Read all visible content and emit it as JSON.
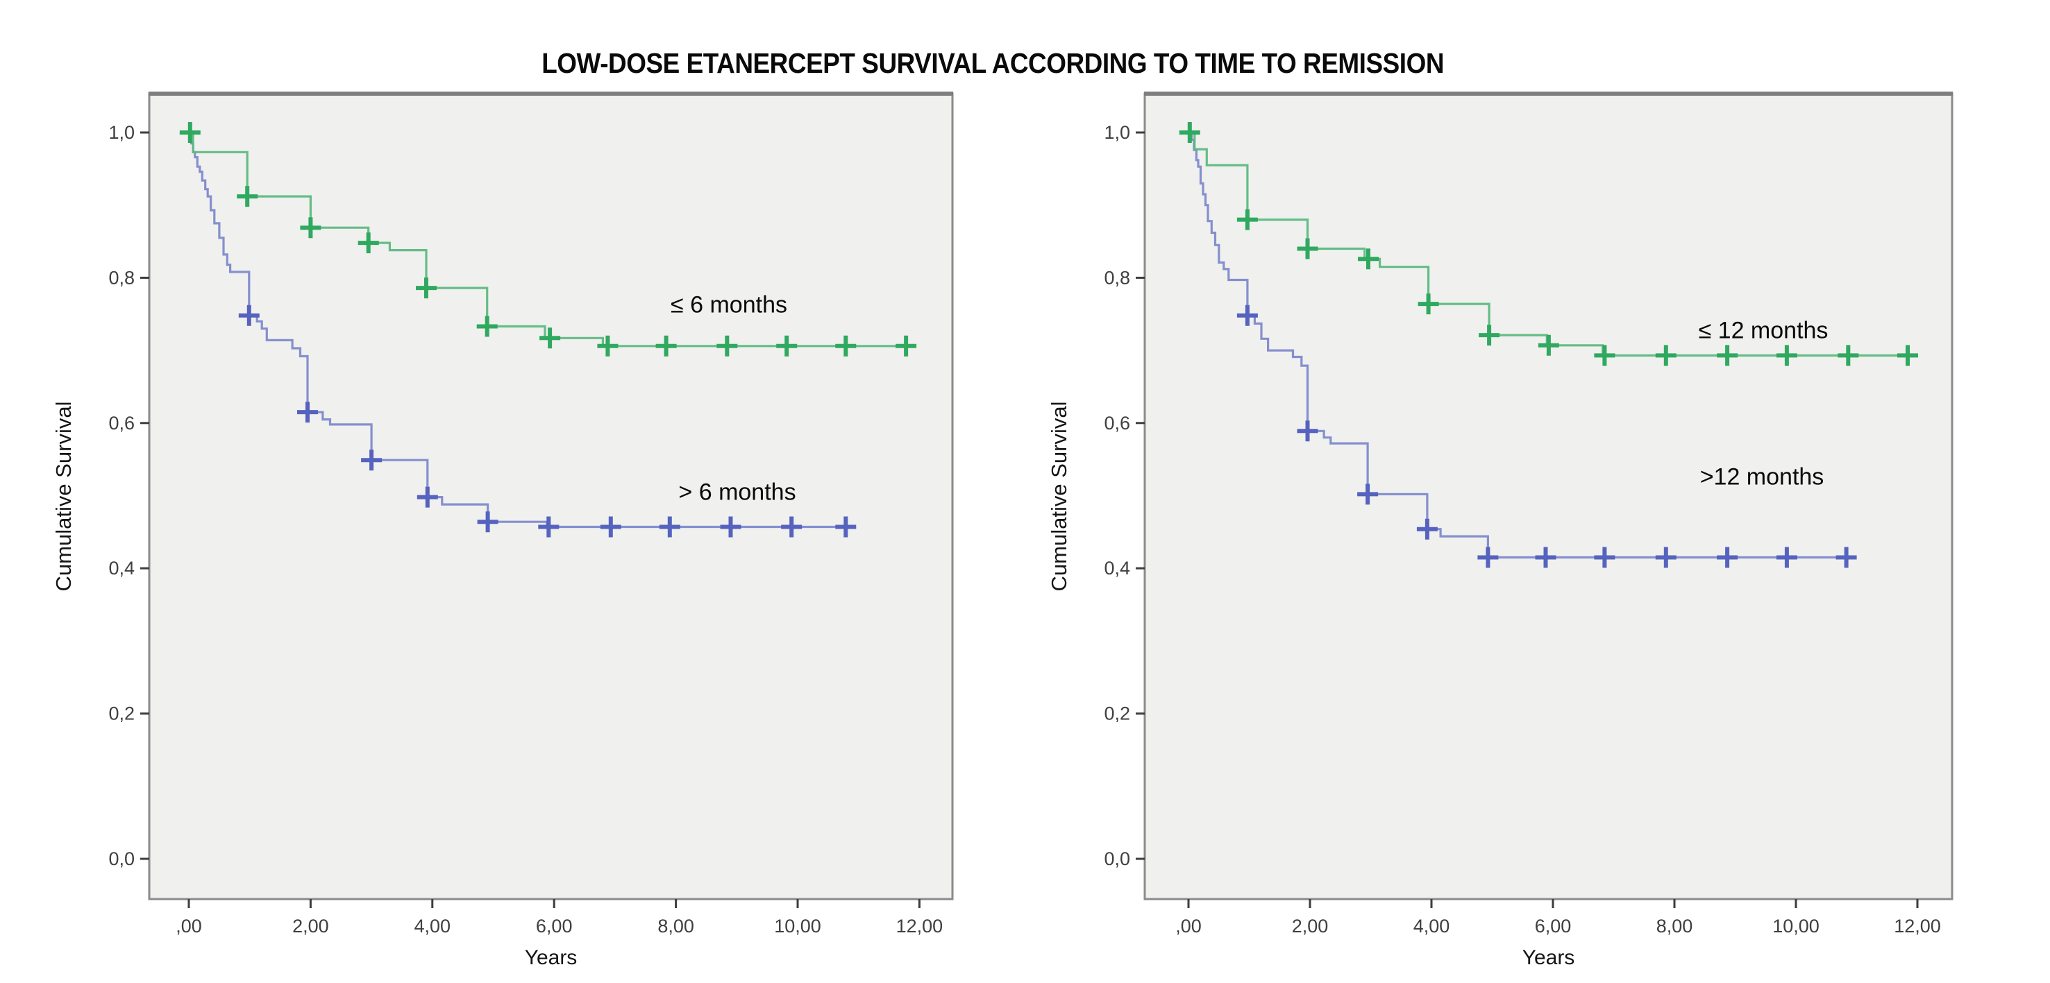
{
  "title": "LOW-DOSE ETANERCEPT SURVIVAL ACCORDING TO TIME TO REMISSION",
  "colors": {
    "background": "#ffffff",
    "plot_background": "#f0f0ee",
    "frame_border": "#8b8b8b",
    "tick_text": "#3f3f3f",
    "label_text": "#0a0a0a",
    "green_line": "#5cb981",
    "green_censor": "#2fa95f",
    "blue_line": "#7e89cc",
    "blue_censor": "#5563bf"
  },
  "chart_data": [
    {
      "type": "line",
      "subtype": "kaplan-meier-step",
      "title": "",
      "xlabel": "Years",
      "ylabel": "Cumulative Survival",
      "xlim": [
        -0.65,
        12.6
      ],
      "ylim": [
        -0.06,
        1.05
      ],
      "grid": false,
      "legend_position": "inline-annotations",
      "x_ticks": [
        0,
        2,
        4,
        6,
        8,
        10,
        12
      ],
      "x_tick_labels": [
        ",00",
        "2,00",
        "4,00",
        "6,00",
        "8,00",
        "10,00",
        "12,00"
      ],
      "y_ticks": [
        1.0,
        0.8,
        0.6,
        0.4,
        0.2,
        0.0
      ],
      "y_tick_labels": [
        "1,0",
        "0,8",
        "0,6",
        "0,4",
        "0,2",
        "0,0"
      ],
      "series": [
        {
          "name": "≤ 6 months",
          "color_key": "green_line",
          "censor_color_key": "green_censor",
          "steps": [
            [
              0,
              1.0
            ],
            [
              0.07,
              0.973
            ],
            [
              0.96,
              0.973
            ],
            [
              0.96,
              0.912
            ],
            [
              2.0,
              0.912
            ],
            [
              2.0,
              0.869
            ],
            [
              2.95,
              0.869
            ],
            [
              2.95,
              0.848
            ],
            [
              3.3,
              0.848
            ],
            [
              3.3,
              0.838
            ],
            [
              3.9,
              0.838
            ],
            [
              3.9,
              0.786
            ],
            [
              4.9,
              0.786
            ],
            [
              4.9,
              0.733
            ],
            [
              5.85,
              0.733
            ],
            [
              5.85,
              0.717
            ],
            [
              6.8,
              0.717
            ],
            [
              6.8,
              0.706
            ],
            [
              11.95,
              0.706
            ]
          ],
          "censors": [
            [
              0.02,
              1.0
            ],
            [
              0.96,
              0.912
            ],
            [
              2.0,
              0.869
            ],
            [
              2.95,
              0.848
            ],
            [
              3.9,
              0.786
            ],
            [
              4.9,
              0.733
            ],
            [
              5.93,
              0.717
            ],
            [
              6.88,
              0.706
            ],
            [
              7.84,
              0.706
            ],
            [
              8.84,
              0.706
            ],
            [
              9.82,
              0.706
            ],
            [
              10.79,
              0.706
            ],
            [
              11.78,
              0.706
            ]
          ]
        },
        {
          "name": "> 6 months",
          "color_key": "blue_line",
          "censor_color_key": "blue_censor",
          "steps": [
            [
              0,
              1.0
            ],
            [
              0.04,
              0.985
            ],
            [
              0.07,
              0.973
            ],
            [
              0.1,
              0.966
            ],
            [
              0.14,
              0.953
            ],
            [
              0.18,
              0.946
            ],
            [
              0.22,
              0.934
            ],
            [
              0.27,
              0.922
            ],
            [
              0.31,
              0.912
            ],
            [
              0.36,
              0.893
            ],
            [
              0.42,
              0.875
            ],
            [
              0.5,
              0.855
            ],
            [
              0.57,
              0.832
            ],
            [
              0.63,
              0.818
            ],
            [
              0.68,
              0.808
            ],
            [
              0.99,
              0.808
            ],
            [
              0.99,
              0.748
            ],
            [
              1.12,
              0.74
            ],
            [
              1.2,
              0.73
            ],
            [
              1.28,
              0.714
            ],
            [
              1.7,
              0.714
            ],
            [
              1.7,
              0.703
            ],
            [
              1.83,
              0.692
            ],
            [
              1.95,
              0.692
            ],
            [
              1.95,
              0.615
            ],
            [
              2.2,
              0.615
            ],
            [
              2.2,
              0.605
            ],
            [
              2.32,
              0.598
            ],
            [
              3.0,
              0.598
            ],
            [
              3.0,
              0.549
            ],
            [
              3.92,
              0.549
            ],
            [
              3.92,
              0.498
            ],
            [
              4.16,
              0.498
            ],
            [
              4.16,
              0.488
            ],
            [
              4.91,
              0.488
            ],
            [
              4.91,
              0.464
            ],
            [
              5.88,
              0.464
            ],
            [
              5.88,
              0.457
            ],
            [
              10.92,
              0.457
            ]
          ],
          "censors": [
            [
              0.99,
              0.748
            ],
            [
              1.95,
              0.615
            ],
            [
              3.0,
              0.549
            ],
            [
              3.92,
              0.498
            ],
            [
              4.91,
              0.464
            ],
            [
              5.91,
              0.457
            ],
            [
              6.93,
              0.457
            ],
            [
              7.9,
              0.457
            ],
            [
              8.9,
              0.457
            ],
            [
              9.9,
              0.457
            ],
            [
              10.79,
              0.457
            ]
          ]
        }
      ],
      "annotations": [
        {
          "text": "≤ 6 months",
          "x": 8.87,
          "y": 0.762
        },
        {
          "text": "> 6 months",
          "x": 8.99,
          "y": 0.504
        }
      ]
    },
    {
      "type": "line",
      "subtype": "kaplan-meier-step",
      "title": "",
      "xlabel": "Years",
      "ylabel": "Cumulative Survival",
      "xlim": [
        -0.65,
        12.6
      ],
      "ylim": [
        -0.06,
        1.05
      ],
      "grid": false,
      "legend_position": "inline-annotations",
      "x_ticks": [
        0,
        2,
        4,
        6,
        8,
        10,
        12
      ],
      "x_tick_labels": [
        ",00",
        "2,00",
        "4,00",
        "6,00",
        "8,00",
        "10,00",
        "12,00"
      ],
      "y_ticks": [
        1.0,
        0.8,
        0.6,
        0.4,
        0.2,
        0.0
      ],
      "y_tick_labels": [
        "1,0",
        "0,8",
        "0,6",
        "0,4",
        "0,2",
        "0,0"
      ],
      "series": [
        {
          "name": "≤ 12 months",
          "color_key": "green_line",
          "censor_color_key": "green_censor",
          "steps": [
            [
              0,
              1.0
            ],
            [
              0.1,
              0.977
            ],
            [
              0.3,
              0.977
            ],
            [
              0.3,
              0.955
            ],
            [
              0.97,
              0.955
            ],
            [
              0.97,
              0.88
            ],
            [
              1.96,
              0.88
            ],
            [
              1.96,
              0.84
            ],
            [
              2.9,
              0.84
            ],
            [
              2.9,
              0.826
            ],
            [
              3.15,
              0.826
            ],
            [
              3.15,
              0.815
            ],
            [
              3.95,
              0.815
            ],
            [
              3.95,
              0.764
            ],
            [
              4.95,
              0.764
            ],
            [
              4.95,
              0.721
            ],
            [
              5.9,
              0.721
            ],
            [
              5.9,
              0.707
            ],
            [
              6.82,
              0.707
            ],
            [
              6.82,
              0.693
            ],
            [
              11.98,
              0.693
            ]
          ],
          "censors": [
            [
              0.02,
              1.0
            ],
            [
              0.97,
              0.88
            ],
            [
              1.96,
              0.84
            ],
            [
              2.96,
              0.826
            ],
            [
              3.95,
              0.764
            ],
            [
              4.95,
              0.721
            ],
            [
              5.93,
              0.707
            ],
            [
              6.85,
              0.693
            ],
            [
              7.86,
              0.693
            ],
            [
              8.87,
              0.693
            ],
            [
              9.85,
              0.693
            ],
            [
              10.86,
              0.693
            ],
            [
              11.84,
              0.693
            ]
          ]
        },
        {
          "name": ">12 months",
          "color_key": "blue_line",
          "censor_color_key": "blue_censor",
          "steps": [
            [
              0,
              1.0
            ],
            [
              0.05,
              0.99
            ],
            [
              0.09,
              0.976
            ],
            [
              0.13,
              0.962
            ],
            [
              0.16,
              0.953
            ],
            [
              0.2,
              0.93
            ],
            [
              0.24,
              0.915
            ],
            [
              0.28,
              0.9
            ],
            [
              0.32,
              0.878
            ],
            [
              0.38,
              0.862
            ],
            [
              0.44,
              0.845
            ],
            [
              0.5,
              0.821
            ],
            [
              0.58,
              0.812
            ],
            [
              0.66,
              0.797
            ],
            [
              0.97,
              0.797
            ],
            [
              0.97,
              0.748
            ],
            [
              1.09,
              0.737
            ],
            [
              1.2,
              0.716
            ],
            [
              1.31,
              0.7
            ],
            [
              1.72,
              0.7
            ],
            [
              1.72,
              0.691
            ],
            [
              1.86,
              0.679
            ],
            [
              1.96,
              0.679
            ],
            [
              1.96,
              0.589
            ],
            [
              2.23,
              0.589
            ],
            [
              2.23,
              0.58
            ],
            [
              2.34,
              0.572
            ],
            [
              2.95,
              0.572
            ],
            [
              2.95,
              0.502
            ],
            [
              3.93,
              0.502
            ],
            [
              3.93,
              0.454
            ],
            [
              4.15,
              0.454
            ],
            [
              4.15,
              0.444
            ],
            [
              4.93,
              0.444
            ],
            [
              4.93,
              0.415
            ],
            [
              10.96,
              0.415
            ]
          ],
          "censors": [
            [
              0.97,
              0.748
            ],
            [
              1.96,
              0.589
            ],
            [
              2.95,
              0.502
            ],
            [
              3.93,
              0.454
            ],
            [
              4.93,
              0.415
            ],
            [
              5.88,
              0.415
            ],
            [
              6.85,
              0.415
            ],
            [
              7.86,
              0.415
            ],
            [
              8.87,
              0.415
            ],
            [
              9.85,
              0.415
            ],
            [
              10.83,
              0.415
            ]
          ]
        }
      ],
      "annotations": [
        {
          "text": "≤ 12 months",
          "x": 9.46,
          "y": 0.727
        },
        {
          "text": ">12 months",
          "x": 9.44,
          "y": 0.525
        }
      ]
    }
  ]
}
